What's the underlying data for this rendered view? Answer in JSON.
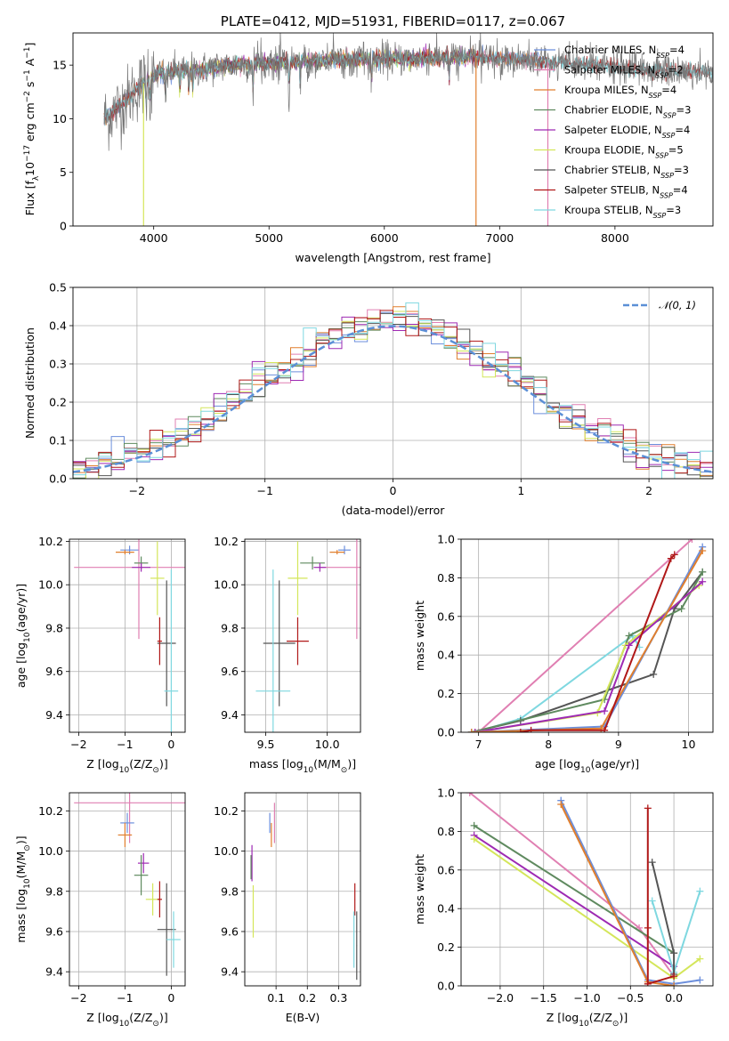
{
  "colors": {
    "Chabrier MILES": "#6c8fdc",
    "Salpeter MILES": "#e07fb2",
    "Kroupa MILES": "#e07f2e",
    "Chabrier ELODIE": "#5f8a5f",
    "Salpeter ELODIE": "#9e2ab3",
    "Kroupa ELODIE": "#d4e65a",
    "Chabrier STELIB": "#555555",
    "Salpeter STELIB": "#b01818",
    "Kroupa STELIB": "#7fd8e0"
  },
  "chart_data": [
    {
      "id": "spectrum",
      "type": "line",
      "title": "PLATE=0412, MJD=51931, FIBERID=0117, z=0.067",
      "xlabel": "wavelength [Angstrom, rest frame]",
      "ylabel": "Flux [f",
      "ylabel_sub": "λ",
      "ylabel_rest": "10",
      "ylabel_exp": "−17",
      "ylabel_end": " erg cm",
      "ylabel_exp2": "−2",
      "ylabel_s": " s",
      "ylabel_exp3": "−1",
      "ylabel_a": " A",
      "ylabel_exp4": "−1",
      "ylabel_close": "]",
      "xlim": [
        3300,
        8850
      ],
      "ylim": [
        0,
        18
      ],
      "xticks": [
        "4000",
        "5000",
        "6000",
        "7000",
        "8000"
      ],
      "yticks": [
        "0",
        "5",
        "10",
        "15"
      ],
      "xtick_values": [
        4000,
        5000,
        6000,
        7000,
        8000
      ],
      "ytick_values": [
        0,
        5,
        10,
        15
      ],
      "continuum": {
        "x": [
          3570,
          3650,
          3750,
          3850,
          3950,
          4050,
          4200,
          4400,
          4600,
          4800,
          5000,
          5200,
          5400,
          5600,
          5800,
          6000,
          6200,
          6400,
          6600,
          6800,
          7000,
          7200,
          7400,
          7600,
          7800,
          8000,
          8200,
          8400,
          8600
        ],
        "y": [
          10.0,
          10.6,
          11.6,
          12.8,
          13.6,
          14.2,
          14.4,
          14.6,
          14.9,
          15.1,
          15.2,
          15.3,
          15.4,
          15.5,
          15.5,
          15.6,
          15.6,
          15.7,
          15.8,
          15.7,
          15.6,
          15.5,
          15.3,
          15.1,
          15.0,
          14.8,
          14.6,
          14.5,
          14.4
        ]
      },
      "series": [
        {
          "name": "Chabrier MILES",
          "nssp": "4",
          "xrange": [
            3570,
            7400
          ]
        },
        {
          "name": "Salpeter MILES",
          "nssp": "2",
          "xrange": [
            3570,
            7400
          ]
        },
        {
          "name": "Kroupa MILES",
          "nssp": "4",
          "xrange": [
            3570,
            7400
          ]
        },
        {
          "name": "Chabrier ELODIE",
          "nssp": "3",
          "xrange": [
            3900,
            6800
          ]
        },
        {
          "name": "Salpeter ELODIE",
          "nssp": "4",
          "xrange": [
            3900,
            6800
          ]
        },
        {
          "name": "Kroupa ELODIE",
          "nssp": "5",
          "xrange": [
            3900,
            6800
          ]
        },
        {
          "name": "Chabrier STELIB",
          "nssp": "3",
          "xrange": [
            3570,
            8850
          ]
        },
        {
          "name": "Salpeter STELIB",
          "nssp": "4",
          "xrange": [
            3570,
            8850
          ]
        },
        {
          "name": "Kroupa STELIB",
          "nssp": "3",
          "xrange": [
            3570,
            8850
          ]
        }
      ],
      "drops": [
        {
          "x": 3912,
          "color": "Kroupa ELODIE"
        },
        {
          "x": 6795,
          "color": "Kroupa MILES"
        },
        {
          "x": 7418,
          "color": "Salpeter MILES"
        }
      ],
      "legend_position": "upper right"
    },
    {
      "id": "residuals",
      "type": "histogram",
      "xlabel": "(data-model)/error",
      "ylabel": "Normed distribution",
      "xlim": [
        -2.5,
        2.5
      ],
      "ylim": [
        0,
        0.5
      ],
      "xticks": [
        "−2",
        "−1",
        "0",
        "1",
        "2"
      ],
      "yticks": [
        "0.0",
        "0.1",
        "0.2",
        "0.3",
        "0.4",
        "0.5"
      ],
      "xtick_values": [
        -2,
        -1,
        0,
        1,
        2
      ],
      "ytick_values": [
        0,
        0.1,
        0.2,
        0.3,
        0.4,
        0.5
      ],
      "bin_width": 0.1,
      "grid": true,
      "gaussian": {
        "label": "𝒩(0, 1)",
        "mu": 0,
        "sigma": 1
      },
      "legend_position": "upper right"
    },
    {
      "id": "age_vs_Z",
      "type": "errorbar",
      "xlabel": "Z [log",
      "xlabel_sub": "10",
      "xlabel_end": "(Z/Z",
      "xlabel_sun": "⊙",
      "xlabel_close": ")]",
      "ylabel": "age  [log",
      "ylabel_sub": "10",
      "ylabel_end": "(age/yr)]",
      "xlim": [
        -2.2,
        0.3
      ],
      "ylim": [
        9.32,
        10.21
      ],
      "xticks": [
        "−2",
        "−1",
        "0"
      ],
      "yticks": [
        "9.4",
        "9.6",
        "9.8",
        "10.0",
        "10.2"
      ],
      "xtick_values": [
        -2,
        -1,
        0
      ],
      "ytick_values": [
        9.4,
        9.6,
        9.8,
        10.0,
        10.2
      ],
      "points": [
        {
          "series": "Chabrier MILES",
          "x": -0.9,
          "xerr": 0.2,
          "y": 10.16,
          "yerr": 0.02
        },
        {
          "series": "Salpeter MILES",
          "x": -0.7,
          "xerr": 1.4,
          "y": 10.08,
          "yerr": 0.33
        },
        {
          "series": "Kroupa MILES",
          "x": -1.0,
          "xerr": 0.2,
          "y": 10.15,
          "yerr": 0.01
        },
        {
          "series": "Chabrier ELODIE",
          "x": -0.65,
          "xerr": 0.15,
          "y": 10.1,
          "yerr": 0.03
        },
        {
          "series": "Salpeter ELODIE",
          "x": -0.65,
          "xerr": 0.2,
          "y": 10.08,
          "yerr": 0.02
        },
        {
          "series": "Kroupa ELODIE",
          "x": -0.3,
          "xerr": 0.15,
          "y": 10.03,
          "yerr": 0.17
        },
        {
          "series": "Chabrier STELIB",
          "x": -0.1,
          "xerr": 0.2,
          "y": 9.73,
          "yerr": 0.29
        },
        {
          "series": "Salpeter STELIB",
          "x": -0.25,
          "xerr": 0.05,
          "y": 9.74,
          "yerr": 0.11
        },
        {
          "series": "Kroupa STELIB",
          "x": 0.0,
          "xerr": 0.15,
          "y": 9.51,
          "yerr": 0.56
        }
      ]
    },
    {
      "id": "age_vs_mass",
      "type": "errorbar",
      "xlabel": "mass [log",
      "xlabel_sub": "10",
      "xlabel_end": "(M/M",
      "xlabel_sun": "⊙",
      "xlabel_close": ")]",
      "xlim": [
        9.33,
        10.27
      ],
      "ylim": [
        9.32,
        10.21
      ],
      "xticks": [
        "9.5",
        "10.0"
      ],
      "yticks": [
        "9.4",
        "9.6",
        "9.8",
        "10.0",
        "10.2"
      ],
      "xtick_values": [
        9.5,
        10.0
      ],
      "ytick_values": [
        9.4,
        9.6,
        9.8,
        10.0,
        10.2
      ],
      "points": [
        {
          "series": "Chabrier MILES",
          "x": 10.14,
          "xerr": 0.05,
          "y": 10.16,
          "yerr": 0.02
        },
        {
          "series": "Salpeter MILES",
          "x": 10.24,
          "xerr": 0.31,
          "y": 10.08,
          "yerr": 0.33
        },
        {
          "series": "Kroupa MILES",
          "x": 10.08,
          "xerr": 0.06,
          "y": 10.15,
          "yerr": 0.01
        },
        {
          "series": "Chabrier ELODIE",
          "x": 9.88,
          "xerr": 0.1,
          "y": 10.1,
          "yerr": 0.03
        },
        {
          "series": "Salpeter ELODIE",
          "x": 9.94,
          "xerr": 0.05,
          "y": 10.08,
          "yerr": 0.02
        },
        {
          "series": "Kroupa ELODIE",
          "x": 9.76,
          "xerr": 0.08,
          "y": 10.03,
          "yerr": 0.17
        },
        {
          "series": "Chabrier STELIB",
          "x": 9.61,
          "xerr": 0.13,
          "y": 9.73,
          "yerr": 0.29
        },
        {
          "series": "Salpeter STELIB",
          "x": 9.76,
          "xerr": 0.09,
          "y": 9.74,
          "yerr": 0.11
        },
        {
          "series": "Kroupa STELIB",
          "x": 9.56,
          "xerr": 0.14,
          "y": 9.51,
          "yerr": 0.56
        }
      ]
    },
    {
      "id": "cumulative_age",
      "type": "line",
      "xlabel": "age  [log",
      "xlabel_sub": "10",
      "xlabel_end": "(age/yr)]",
      "ylabel": "mass weight",
      "xlim": [
        6.75,
        10.35
      ],
      "ylim": [
        0,
        1
      ],
      "xticks": [
        "7",
        "8",
        "9",
        "10"
      ],
      "yticks": [
        "0.0",
        "0.2",
        "0.4",
        "0.6",
        "0.8",
        "1.0"
      ],
      "xtick_values": [
        7,
        8,
        9,
        10
      ],
      "ytick_values": [
        0,
        0.2,
        0.4,
        0.6,
        0.8,
        1.0
      ],
      "series": [
        {
          "name": "Salpeter MILES",
          "x": [
            7.0,
            10.05
          ],
          "y": [
            0.0,
            1.0
          ]
        },
        {
          "name": "Kroupa STELIB",
          "x": [
            6.95,
            7.6,
            9.2,
            9.3
          ],
          "y": [
            0.0,
            0.07,
            0.5,
            0.44
          ]
        },
        {
          "name": "Chabrier STELIB",
          "x": [
            6.9,
            7.6,
            9.5,
            9.8,
            10.2
          ],
          "y": [
            0.0,
            0.06,
            0.3,
            0.64,
            0.83
          ]
        },
        {
          "name": "Chabrier ELODIE",
          "x": [
            6.9,
            8.8,
            9.15,
            9.9,
            10.2
          ],
          "y": [
            0.0,
            0.17,
            0.5,
            0.64,
            0.83
          ]
        },
        {
          "name": "Kroupa ELODIE",
          "x": [
            6.95,
            8.7,
            9.1,
            10.15
          ],
          "y": [
            0.0,
            0.1,
            0.45,
            0.76
          ]
        },
        {
          "name": "Salpeter ELODIE",
          "x": [
            6.95,
            8.8,
            9.15,
            10.2
          ],
          "y": [
            0.0,
            0.11,
            0.45,
            0.78
          ]
        },
        {
          "name": "Chabrier MILES",
          "x": [
            6.9,
            8.8,
            10.2
          ],
          "y": [
            0.0,
            0.03,
            0.96
          ]
        },
        {
          "name": "Kroupa MILES",
          "x": [
            6.9,
            8.75,
            10.2
          ],
          "y": [
            0.0,
            0.02,
            0.94
          ]
        },
        {
          "name": "Salpeter STELIB",
          "x": [
            7.6,
            7.75,
            8.8,
            9.75,
            9.8
          ],
          "y": [
            0.0,
            0.01,
            0.01,
            0.9,
            0.92
          ]
        }
      ]
    },
    {
      "id": "mass_vs_Z",
      "type": "errorbar",
      "xlabel": "Z [log",
      "xlabel_sub": "10",
      "xlabel_end": "(Z/Z",
      "xlabel_sun": "⊙",
      "xlabel_close": ")]",
      "ylabel": "mass [log",
      "ylabel_sub": "10",
      "ylabel_end": "(M/M",
      "ylabel_sun": "⊙",
      "ylabel_close": ")]",
      "xlim": [
        -2.2,
        0.3
      ],
      "ylim": [
        9.33,
        10.29
      ],
      "xticks": [
        "−2",
        "−1",
        "0"
      ],
      "yticks": [
        "9.4",
        "9.6",
        "9.8",
        "10.0",
        "10.2"
      ],
      "xtick_values": [
        -2,
        -1,
        0
      ],
      "ytick_values": [
        9.4,
        9.6,
        9.8,
        10.0,
        10.2
      ],
      "points": [
        {
          "series": "Salpeter MILES",
          "x": -0.9,
          "xerr": 1.2,
          "y": 10.24,
          "yerr": 0.2
        },
        {
          "series": "Chabrier MILES",
          "x": -0.95,
          "xerr": 0.15,
          "y": 10.14,
          "yerr": 0.05
        },
        {
          "series": "Kroupa MILES",
          "x": -1.0,
          "xerr": 0.15,
          "y": 10.08,
          "yerr": 0.06
        },
        {
          "series": "Salpeter ELODIE",
          "x": -0.6,
          "xerr": 0.12,
          "y": 9.94,
          "yerr": 0.05
        },
        {
          "series": "Chabrier ELODIE",
          "x": -0.65,
          "xerr": 0.15,
          "y": 9.88,
          "yerr": 0.1
        },
        {
          "series": "Kroupa ELODIE",
          "x": -0.4,
          "xerr": 0.15,
          "y": 9.76,
          "yerr": 0.08
        },
        {
          "series": "Salpeter STELIB",
          "x": -0.25,
          "xerr": 0.05,
          "y": 9.76,
          "yerr": 0.09
        },
        {
          "series": "Chabrier STELIB",
          "x": -0.1,
          "xerr": 0.2,
          "y": 9.61,
          "yerr": 0.23
        },
        {
          "series": "Kroupa STELIB",
          "x": 0.05,
          "xerr": 0.15,
          "y": 9.56,
          "yerr": 0.14
        }
      ]
    },
    {
      "id": "mass_vs_ebv",
      "type": "errorbar",
      "xlabel": "E(B-V)",
      "xlim": [
        0.0,
        0.37
      ],
      "ylim": [
        9.33,
        10.29
      ],
      "xticks": [
        "0.1",
        "0.2",
        "0.3"
      ],
      "yticks": [
        "9.4",
        "9.6",
        "9.8",
        "10.0",
        "10.2"
      ],
      "xtick_values": [
        0.1,
        0.2,
        0.3
      ],
      "ytick_values": [
        9.4,
        9.6,
        9.8,
        10.0,
        10.2
      ],
      "points": [
        {
          "series": "Salpeter MILES",
          "x": 0.095,
          "xerr": 0.001,
          "y": 10.14,
          "yerr": 0.1
        },
        {
          "series": "Chabrier MILES",
          "x": 0.08,
          "xerr": 0.001,
          "y": 10.14,
          "yerr": 0.05
        },
        {
          "series": "Kroupa MILES",
          "x": 0.085,
          "xerr": 0.001,
          "y": 10.08,
          "yerr": 0.06
        },
        {
          "series": "Salpeter ELODIE",
          "x": 0.023,
          "xerr": 0.001,
          "y": 9.94,
          "yerr": 0.09
        },
        {
          "series": "Chabrier ELODIE",
          "x": 0.02,
          "xerr": 0.001,
          "y": 9.92,
          "yerr": 0.06
        },
        {
          "series": "Kroupa ELODIE",
          "x": 0.027,
          "xerr": 0.001,
          "y": 9.7,
          "yerr": 0.13
        },
        {
          "series": "Salpeter STELIB",
          "x": 0.352,
          "xerr": 0.001,
          "y": 9.76,
          "yerr": 0.08
        },
        {
          "series": "Chabrier STELIB",
          "x": 0.358,
          "xerr": 0.001,
          "y": 9.53,
          "yerr": 0.17
        },
        {
          "series": "Kroupa STELIB",
          "x": 0.349,
          "xerr": 0.001,
          "y": 9.56,
          "yerr": 0.14
        }
      ]
    },
    {
      "id": "cumulative_Z",
      "type": "line",
      "xlabel": "Z [log",
      "xlabel_sub": "10",
      "xlabel_end": "(Z/Z",
      "xlabel_sun": "⊙",
      "xlabel_close": ")]",
      "ylabel": "mass weight",
      "xlim": [
        -2.45,
        0.45
      ],
      "ylim": [
        0,
        1
      ],
      "xticks": [
        "−2.0",
        "−1.5",
        "−1.0",
        "−0.5",
        "0.0"
      ],
      "yticks": [
        "0.0",
        "0.2",
        "0.4",
        "0.6",
        "0.8",
        "1.0"
      ],
      "xtick_values": [
        -2.0,
        -1.5,
        -1.0,
        -0.5,
        0.0
      ],
      "ytick_values": [
        0,
        0.2,
        0.4,
        0.6,
        0.8,
        1.0
      ],
      "series": [
        {
          "name": "Salpeter MILES",
          "x": [
            -2.35,
            -0.4,
            0.0
          ],
          "y": [
            1.0,
            0.3,
            0.05
          ]
        },
        {
          "name": "Chabrier ELODIE",
          "x": [
            -2.3,
            0.0
          ],
          "y": [
            0.83,
            0.17
          ]
        },
        {
          "name": "Salpeter ELODIE",
          "x": [
            -2.3,
            0.0
          ],
          "y": [
            0.78,
            0.1
          ]
        },
        {
          "name": "Kroupa ELODIE",
          "x": [
            -2.3,
            0.0,
            0.3
          ],
          "y": [
            0.76,
            0.04,
            0.14
          ]
        },
        {
          "name": "Chabrier MILES",
          "x": [
            -1.3,
            -0.3,
            0.0,
            0.3
          ],
          "y": [
            0.96,
            0.03,
            0.01,
            0.03
          ]
        },
        {
          "name": "Kroupa MILES",
          "x": [
            -1.3,
            -0.3,
            0.0
          ],
          "y": [
            0.94,
            0.02,
            0.0
          ]
        },
        {
          "name": "Kroupa STELIB",
          "x": [
            -0.25,
            0.0,
            0.3
          ],
          "y": [
            0.44,
            0.07,
            0.49
          ]
        },
        {
          "name": "Chabrier STELIB",
          "x": [
            -0.25,
            0.0,
            0.0
          ],
          "y": [
            0.64,
            0.17,
            0.06
          ]
        },
        {
          "name": "Salpeter STELIB",
          "x": [
            -0.3,
            -0.3,
            -0.3,
            0.0
          ],
          "y": [
            0.92,
            0.3,
            0.01,
            0.05
          ]
        }
      ]
    }
  ]
}
